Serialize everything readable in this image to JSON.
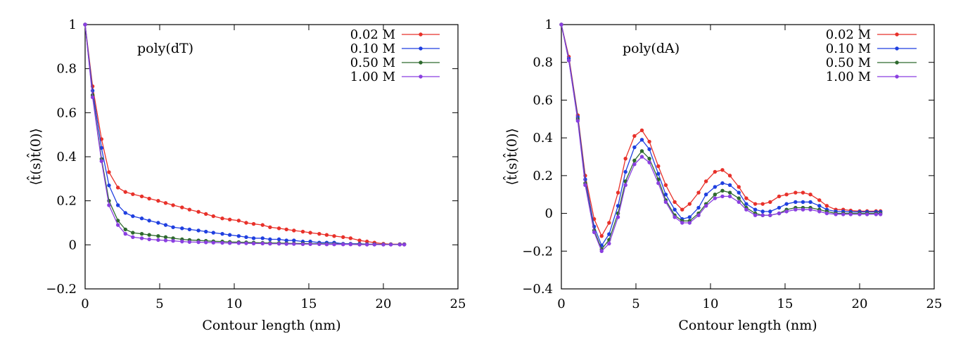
{
  "chart_data": [
    {
      "type": "line",
      "title": "",
      "annotation": "poly(dT)",
      "xlabel": "Contour length (nm)",
      "ylabel": "⟨t̂(s)t̂(0)⟩",
      "xlim": [
        0,
        25
      ],
      "ylim": [
        -0.2,
        1
      ],
      "xticks": [
        0,
        5,
        10,
        15,
        20,
        25
      ],
      "yticks": [
        -0.2,
        0,
        0.2,
        0.4,
        0.6,
        0.8,
        1
      ],
      "xtick_labels": [
        "0",
        "5",
        "10",
        "15",
        "20",
        "25"
      ],
      "ytick_labels": [
        "−0.2",
        "0",
        "0.2",
        "0.4",
        "0.6",
        "0.8",
        "1"
      ],
      "grid": false,
      "legend_position": "top-right",
      "x": [
        0,
        0.5,
        1.1,
        1.6,
        2.2,
        2.7,
        3.2,
        3.8,
        4.3,
        4.9,
        5.4,
        5.9,
        6.5,
        7.0,
        7.6,
        8.1,
        8.6,
        9.2,
        9.7,
        10.3,
        10.8,
        11.3,
        11.9,
        12.4,
        13.0,
        13.5,
        14.0,
        14.6,
        15.1,
        15.7,
        16.2,
        16.7,
        17.3,
        17.8,
        18.4,
        18.9,
        19.4,
        20.0,
        20.5,
        21.1,
        21.4
      ],
      "series": [
        {
          "name": "0.02 M",
          "color": "#e8312a",
          "values": [
            1,
            0.72,
            0.48,
            0.33,
            0.26,
            0.24,
            0.23,
            0.22,
            0.21,
            0.2,
            0.19,
            0.18,
            0.17,
            0.16,
            0.15,
            0.14,
            0.13,
            0.12,
            0.115,
            0.11,
            0.1,
            0.095,
            0.09,
            0.08,
            0.075,
            0.07,
            0.065,
            0.06,
            0.055,
            0.05,
            0.045,
            0.04,
            0.035,
            0.03,
            0.02,
            0.015,
            0.01,
            0.005,
            0.003,
            0.003,
            0.003
          ]
        },
        {
          "name": "0.10 M",
          "color": "#1f3fe0",
          "values": [
            1,
            0.7,
            0.44,
            0.27,
            0.18,
            0.145,
            0.13,
            0.12,
            0.11,
            0.1,
            0.09,
            0.08,
            0.075,
            0.07,
            0.065,
            0.06,
            0.055,
            0.05,
            0.045,
            0.04,
            0.035,
            0.03,
            0.03,
            0.025,
            0.025,
            0.02,
            0.02,
            0.015,
            0.015,
            0.01,
            0.01,
            0.01,
            0.005,
            0.005,
            0.005,
            0.003,
            0.003,
            0.002,
            0.002,
            0.002,
            0.002
          ]
        },
        {
          "name": "0.50 M",
          "color": "#2e6a2e",
          "values": [
            1,
            0.68,
            0.39,
            0.2,
            0.11,
            0.07,
            0.055,
            0.05,
            0.045,
            0.04,
            0.035,
            0.03,
            0.025,
            0.022,
            0.02,
            0.018,
            0.016,
            0.015,
            0.013,
            0.012,
            0.011,
            0.01,
            0.009,
            0.008,
            0.008,
            0.007,
            0.006,
            0.006,
            0.005,
            0.005,
            0.004,
            0.004,
            0.003,
            0.003,
            0.003,
            0.002,
            0.002,
            0.002,
            0.002,
            0.002,
            0.002
          ]
        },
        {
          "name": "1.00 M",
          "color": "#8a3fe0",
          "values": [
            1,
            0.67,
            0.38,
            0.18,
            0.09,
            0.05,
            0.035,
            0.03,
            0.025,
            0.022,
            0.02,
            0.018,
            0.015,
            0.013,
            0.012,
            0.011,
            0.01,
            0.009,
            0.008,
            0.008,
            0.007,
            0.006,
            0.006,
            0.005,
            0.005,
            0.004,
            0.004,
            0.003,
            0.003,
            0.003,
            0.002,
            0.002,
            0.002,
            0.002,
            0.001,
            0.001,
            0.001,
            0.001,
            0.001,
            0.001,
            0.001
          ]
        }
      ]
    },
    {
      "type": "line",
      "title": "",
      "annotation": "poly(dA)",
      "xlabel": "Contour length (nm)",
      "ylabel": "⟨t̂(s)t̂(0)⟩",
      "xlim": [
        0,
        25
      ],
      "ylim": [
        -0.4,
        1
      ],
      "xticks": [
        0,
        5,
        10,
        15,
        20,
        25
      ],
      "yticks": [
        -0.4,
        -0.2,
        0,
        0.2,
        0.4,
        0.6,
        0.8,
        1
      ],
      "xtick_labels": [
        "0",
        "5",
        "10",
        "15",
        "20",
        "25"
      ],
      "ytick_labels": [
        "−0.4",
        "−0.2",
        "0",
        "0.2",
        "0.4",
        "0.6",
        "0.8",
        "1"
      ],
      "grid": false,
      "legend_position": "top-right",
      "x": [
        0,
        0.5,
        1.1,
        1.6,
        2.2,
        2.7,
        3.2,
        3.8,
        4.3,
        4.9,
        5.4,
        5.9,
        6.5,
        7.0,
        7.6,
        8.1,
        8.6,
        9.2,
        9.7,
        10.3,
        10.8,
        11.3,
        11.9,
        12.4,
        13.0,
        13.5,
        14.0,
        14.6,
        15.1,
        15.7,
        16.2,
        16.7,
        17.3,
        17.8,
        18.4,
        18.9,
        19.4,
        20.0,
        20.5,
        21.1,
        21.4
      ],
      "series": [
        {
          "name": "0.02 M",
          "color": "#e8312a",
          "values": [
            1,
            0.83,
            0.52,
            0.2,
            -0.03,
            -0.12,
            -0.05,
            0.11,
            0.29,
            0.41,
            0.44,
            0.38,
            0.25,
            0.15,
            0.06,
            0.02,
            0.05,
            0.11,
            0.17,
            0.22,
            0.23,
            0.2,
            0.14,
            0.08,
            0.05,
            0.05,
            0.06,
            0.09,
            0.1,
            0.11,
            0.11,
            0.1,
            0.07,
            0.04,
            0.02,
            0.02,
            0.015,
            0.012,
            0.012,
            0.012,
            0.012
          ]
        },
        {
          "name": "0.10 M",
          "color": "#1f3fe0",
          "values": [
            1,
            0.82,
            0.51,
            0.18,
            -0.07,
            -0.17,
            -0.11,
            0.04,
            0.22,
            0.35,
            0.39,
            0.34,
            0.21,
            0.1,
            0.02,
            -0.03,
            -0.02,
            0.03,
            0.1,
            0.14,
            0.16,
            0.15,
            0.11,
            0.05,
            0.02,
            0.01,
            0.01,
            0.03,
            0.05,
            0.06,
            0.06,
            0.06,
            0.04,
            0.02,
            0.01,
            0.01,
            0.008,
            0.008,
            0.008,
            0.008,
            0.008
          ]
        },
        {
          "name": "0.50 M",
          "color": "#2e6a2e",
          "values": [
            1,
            0.81,
            0.5,
            0.16,
            -0.09,
            -0.19,
            -0.14,
            0.0,
            0.17,
            0.28,
            0.33,
            0.29,
            0.18,
            0.07,
            -0.01,
            -0.04,
            -0.04,
            0.0,
            0.05,
            0.1,
            0.12,
            0.11,
            0.08,
            0.03,
            0.0,
            -0.01,
            -0.01,
            0.0,
            0.02,
            0.03,
            0.03,
            0.03,
            0.02,
            0.01,
            0.0,
            0.0,
            0.0,
            0.0,
            0.0,
            0.0,
            0.0
          ]
        },
        {
          "name": "1.00 M",
          "color": "#8a3fe0",
          "values": [
            1,
            0.81,
            0.49,
            0.15,
            -0.1,
            -0.2,
            -0.16,
            -0.02,
            0.15,
            0.26,
            0.3,
            0.27,
            0.16,
            0.06,
            -0.02,
            -0.05,
            -0.05,
            -0.01,
            0.04,
            0.08,
            0.09,
            0.09,
            0.06,
            0.02,
            -0.01,
            -0.01,
            -0.01,
            0.0,
            0.01,
            0.02,
            0.02,
            0.02,
            0.01,
            0.0,
            -0.005,
            -0.005,
            -0.005,
            -0.005,
            -0.005,
            -0.005,
            -0.005
          ]
        }
      ]
    }
  ]
}
